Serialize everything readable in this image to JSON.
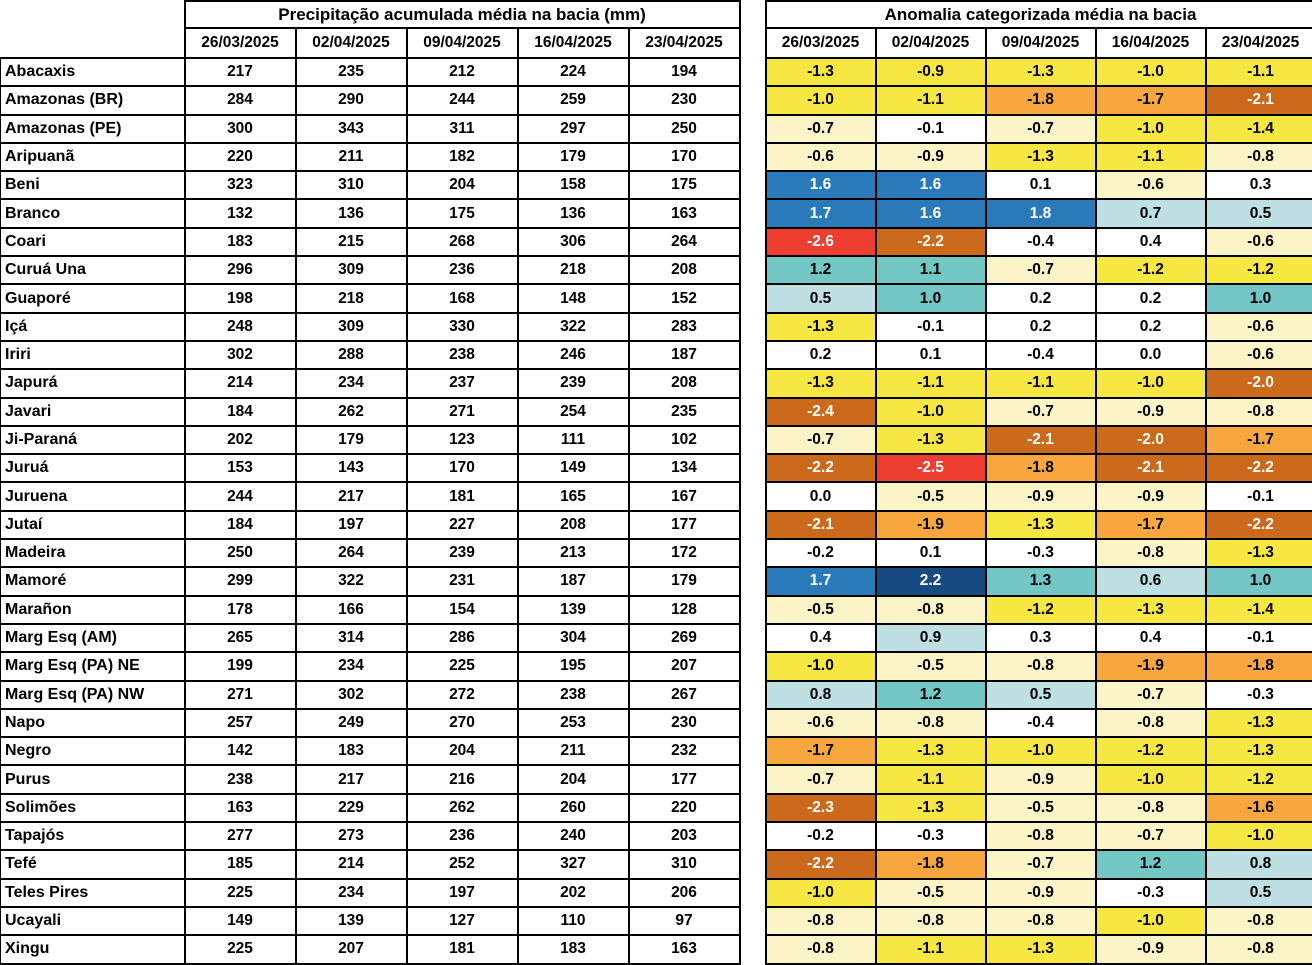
{
  "chart_data": {
    "type": "table",
    "tables": [
      {
        "type": "table",
        "title": "Precipitação acumulada média na bacia (mm)",
        "value_kind": "precipitation_mm"
      },
      {
        "type": "heatmap",
        "title": "Anomalia categorizada média na bacia",
        "value_kind": "anomaly"
      }
    ],
    "left_title": "Precipitação acumulada média na bacia (mm)",
    "right_title": "Anomalia categorizada média na bacia",
    "columns": [
      "26/03/2025",
      "02/04/2025",
      "09/04/2025",
      "16/04/2025",
      "23/04/2025"
    ],
    "basins": [
      "Abacaxis",
      "Amazonas (BR)",
      "Amazonas (PE)",
      "Aripuanã",
      "Beni",
      "Branco",
      "Coari",
      "Curuá Una",
      "Guaporé",
      "Içá",
      "Iriri",
      "Japurá",
      "Javari",
      "Ji-Paraná",
      "Juruá",
      "Juruena",
      "Jutaí",
      "Madeira",
      "Mamoré",
      "Marañon",
      "Marg Esq (AM)",
      "Marg Esq (PA) NE",
      "Marg Esq (PA) NW",
      "Napo",
      "Negro",
      "Purus",
      "Solimões",
      "Tapajós",
      "Tefé",
      "Teles Pires",
      "Ucayali",
      "Xingu"
    ],
    "precipitation": [
      [
        217,
        235,
        212,
        224,
        194
      ],
      [
        284,
        290,
        244,
        259,
        230
      ],
      [
        300,
        343,
        311,
        297,
        250
      ],
      [
        220,
        211,
        182,
        179,
        170
      ],
      [
        323,
        310,
        204,
        158,
        175
      ],
      [
        132,
        136,
        175,
        136,
        163
      ],
      [
        183,
        215,
        268,
        306,
        264
      ],
      [
        296,
        309,
        236,
        218,
        208
      ],
      [
        198,
        218,
        168,
        148,
        152
      ],
      [
        248,
        309,
        330,
        322,
        283
      ],
      [
        302,
        288,
        238,
        246,
        187
      ],
      [
        214,
        234,
        237,
        239,
        208
      ],
      [
        184,
        262,
        271,
        254,
        235
      ],
      [
        202,
        179,
        123,
        111,
        102
      ],
      [
        153,
        143,
        170,
        149,
        134
      ],
      [
        244,
        217,
        181,
        165,
        167
      ],
      [
        184,
        197,
        227,
        208,
        177
      ],
      [
        250,
        264,
        239,
        213,
        172
      ],
      [
        299,
        322,
        231,
        187,
        179
      ],
      [
        178,
        166,
        154,
        139,
        128
      ],
      [
        265,
        314,
        286,
        304,
        269
      ],
      [
        199,
        234,
        225,
        195,
        207
      ],
      [
        271,
        302,
        272,
        238,
        267
      ],
      [
        257,
        249,
        270,
        253,
        230
      ],
      [
        142,
        183,
        204,
        211,
        232
      ],
      [
        238,
        217,
        216,
        204,
        177
      ],
      [
        163,
        229,
        262,
        260,
        220
      ],
      [
        277,
        273,
        236,
        240,
        203
      ],
      [
        185,
        214,
        252,
        327,
        310
      ],
      [
        225,
        234,
        197,
        202,
        206
      ],
      [
        149,
        139,
        127,
        110,
        97
      ],
      [
        225,
        207,
        181,
        183,
        163
      ]
    ],
    "anomaly": [
      [
        -1.3,
        -0.9,
        -1.3,
        -1.0,
        -1.1
      ],
      [
        -1.0,
        -1.1,
        -1.8,
        -1.7,
        -2.1
      ],
      [
        -0.7,
        -0.1,
        -0.7,
        -1.0,
        -1.4
      ],
      [
        -0.6,
        -0.9,
        -1.3,
        -1.1,
        -0.8
      ],
      [
        1.6,
        1.6,
        0.1,
        -0.6,
        0.3
      ],
      [
        1.7,
        1.6,
        1.8,
        0.7,
        0.5
      ],
      [
        -2.6,
        -2.2,
        -0.4,
        0.4,
        -0.6
      ],
      [
        1.2,
        1.1,
        -0.7,
        -1.2,
        -1.2
      ],
      [
        0.5,
        1.0,
        0.2,
        0.2,
        1.0
      ],
      [
        -1.3,
        -0.1,
        0.2,
        0.2,
        -0.6
      ],
      [
        0.2,
        0.1,
        -0.4,
        0.0,
        -0.6
      ],
      [
        -1.3,
        -1.1,
        -1.1,
        -1.0,
        -2.0
      ],
      [
        -2.4,
        -1.0,
        -0.7,
        -0.9,
        -0.8
      ],
      [
        -0.7,
        -1.3,
        -2.1,
        -2.0,
        -1.7
      ],
      [
        -2.2,
        -2.5,
        -1.8,
        -2.1,
        -2.2
      ],
      [
        0.0,
        -0.5,
        -0.9,
        -0.9,
        -0.1
      ],
      [
        -2.1,
        -1.9,
        -1.3,
        -1.7,
        -2.2
      ],
      [
        -0.2,
        0.1,
        -0.3,
        -0.8,
        -1.3
      ],
      [
        1.7,
        2.2,
        1.3,
        0.6,
        1.0
      ],
      [
        -0.5,
        -0.8,
        -1.2,
        -1.3,
        -1.4
      ],
      [
        0.4,
        0.9,
        0.3,
        0.4,
        -0.1
      ],
      [
        -1.0,
        -0.5,
        -0.8,
        -1.9,
        -1.8
      ],
      [
        0.8,
        1.2,
        0.5,
        -0.7,
        -0.3
      ],
      [
        -0.6,
        -0.8,
        -0.4,
        -0.8,
        -1.3
      ],
      [
        -1.7,
        -1.3,
        -1.0,
        -1.2,
        -1.3
      ],
      [
        -0.7,
        -1.1,
        -0.9,
        -1.0,
        -1.2
      ],
      [
        -2.3,
        -1.3,
        -0.5,
        -0.8,
        -1.6
      ],
      [
        -0.2,
        -0.3,
        -0.8,
        -0.7,
        -1.0
      ],
      [
        -2.2,
        -1.8,
        -0.7,
        1.2,
        0.8
      ],
      [
        -1.0,
        -0.5,
        -0.9,
        -0.3,
        0.5
      ],
      [
        -0.8,
        -0.8,
        -0.8,
        -1.0,
        -0.8
      ],
      [
        -0.8,
        -1.1,
        -1.3,
        -0.9,
        -0.8
      ]
    ],
    "anomaly_category": [
      [
        "y",
        "y",
        "y",
        "y",
        "y"
      ],
      [
        "y",
        "y",
        "o",
        "o",
        "d"
      ],
      [
        "c",
        "w",
        "c",
        "y",
        "y"
      ],
      [
        "c",
        "c",
        "y",
        "y",
        "c"
      ],
      [
        "b",
        "b",
        "w",
        "c",
        "w"
      ],
      [
        "b",
        "b",
        "b",
        "p",
        "p"
      ],
      [
        "r",
        "d",
        "w",
        "w",
        "c"
      ],
      [
        "t",
        "t",
        "c",
        "y",
        "y"
      ],
      [
        "p",
        "t",
        "w",
        "w",
        "t"
      ],
      [
        "y",
        "w",
        "w",
        "w",
        "c"
      ],
      [
        "w",
        "w",
        "w",
        "w",
        "c"
      ],
      [
        "y",
        "y",
        "y",
        "y",
        "d"
      ],
      [
        "d",
        "y",
        "c",
        "c",
        "c"
      ],
      [
        "c",
        "y",
        "d",
        "d",
        "o"
      ],
      [
        "d",
        "r",
        "o",
        "d",
        "d"
      ],
      [
        "w",
        "c",
        "c",
        "c",
        "w"
      ],
      [
        "d",
        "o",
        "y",
        "o",
        "d"
      ],
      [
        "w",
        "w",
        "w",
        "c",
        "y"
      ],
      [
        "b",
        "n",
        "t",
        "p",
        "t"
      ],
      [
        "c",
        "c",
        "y",
        "y",
        "y"
      ],
      [
        "w",
        "p",
        "w",
        "w",
        "w"
      ],
      [
        "y",
        "c",
        "c",
        "o",
        "o"
      ],
      [
        "p",
        "t",
        "p",
        "c",
        "w"
      ],
      [
        "c",
        "c",
        "w",
        "c",
        "y"
      ],
      [
        "o",
        "y",
        "y",
        "y",
        "y"
      ],
      [
        "c",
        "y",
        "c",
        "y",
        "y"
      ],
      [
        "d",
        "y",
        "c",
        "c",
        "o"
      ],
      [
        "w",
        "w",
        "c",
        "c",
        "y"
      ],
      [
        "d",
        "o",
        "c",
        "t",
        "p"
      ],
      [
        "y",
        "c",
        "c",
        "w",
        "p"
      ],
      [
        "c",
        "c",
        "c",
        "y",
        "c"
      ],
      [
        "c",
        "y",
        "y",
        "c",
        "c"
      ]
    ]
  },
  "palette": {
    "r": {
      "name": "red",
      "bg": "#EE3E32",
      "fg": "#FFFFFF"
    },
    "d": {
      "name": "dark-orange",
      "bg": "#CB6A1A",
      "fg": "#FFFFFF"
    },
    "o": {
      "name": "orange",
      "bg": "#F8A63E",
      "fg": "#000000"
    },
    "y": {
      "name": "yellow",
      "bg": "#F7E742",
      "fg": "#000000"
    },
    "c": {
      "name": "pale-yellow",
      "bg": "#FBF4C7",
      "fg": "#000000"
    },
    "w": {
      "name": "white",
      "bg": "#FFFFFF",
      "fg": "#000000"
    },
    "p": {
      "name": "pale-cyan",
      "bg": "#BEE0E2",
      "fg": "#000000"
    },
    "t": {
      "name": "teal",
      "bg": "#73C7C4",
      "fg": "#000000"
    },
    "b": {
      "name": "blue",
      "bg": "#2A79B9",
      "fg": "#FFFFFF"
    },
    "n": {
      "name": "dark-blue",
      "bg": "#174A80",
      "fg": "#FFFFFF"
    }
  }
}
